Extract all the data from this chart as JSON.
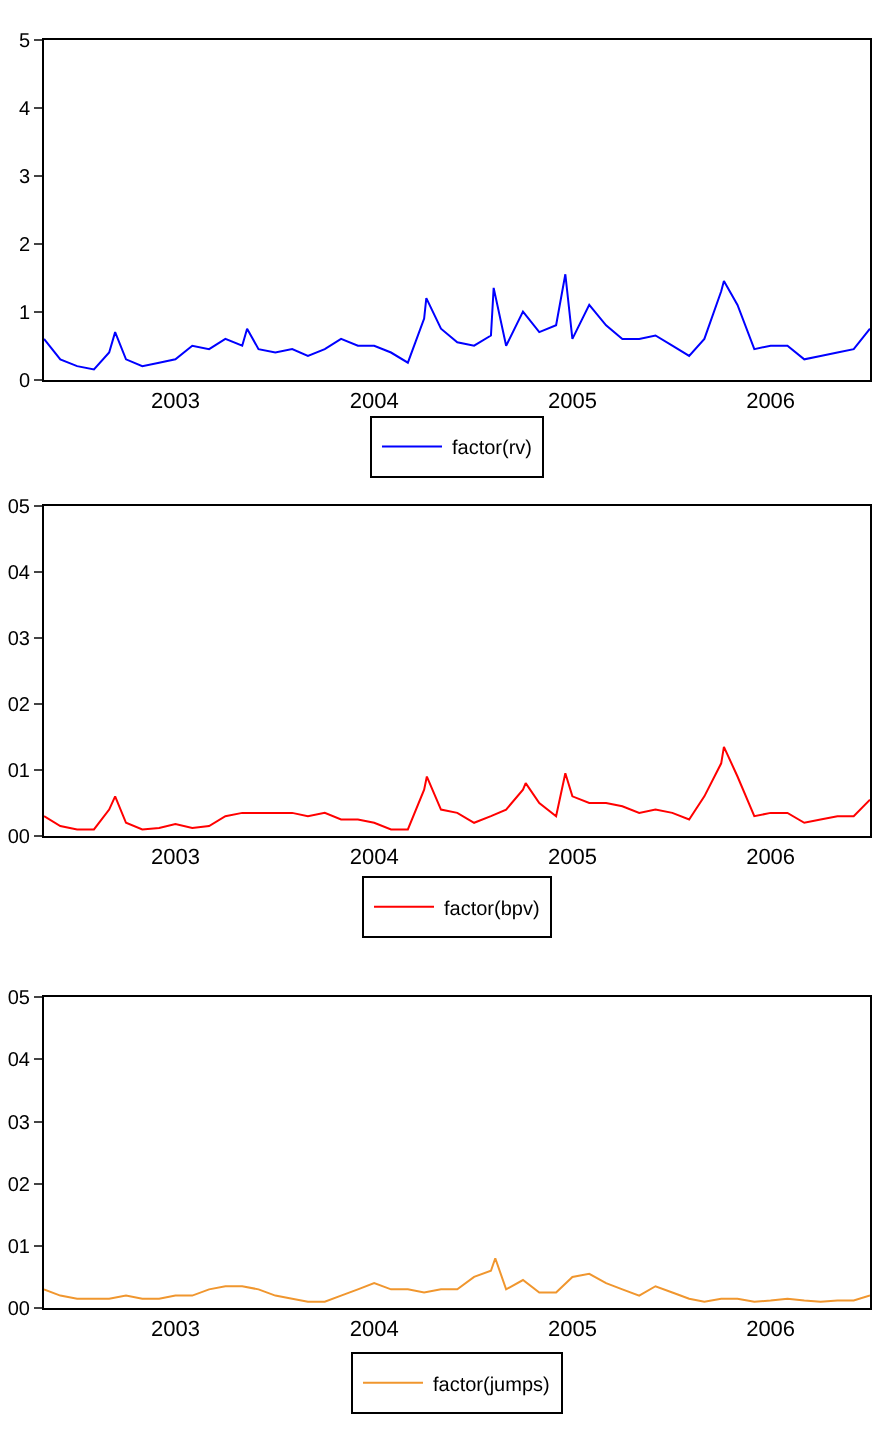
{
  "chart_data": [
    {
      "type": "line",
      "xlim": [
        "2002-11-01",
        "2006-12-31"
      ],
      "ylim": [
        0,
        5
      ],
      "yticks": [
        0,
        1,
        2,
        3,
        4,
        5
      ],
      "xticks": [
        {
          "value": "2003-07-01",
          "label": "2003"
        },
        {
          "value": "2004-07-01",
          "label": "2004"
        },
        {
          "value": "2005-07-01",
          "label": "2005"
        },
        {
          "value": "2006-07-01",
          "label": "2006"
        }
      ],
      "legend": "bottom",
      "series": [
        {
          "name": "factor(rv)",
          "color": "#0000ff",
          "x": [
            "2002-11",
            "2002-12",
            "2003-01",
            "2003-02",
            "2003-03",
            "2003-03-12",
            "2003-04",
            "2003-05",
            "2003-06",
            "2003-07",
            "2003-08",
            "2003-09",
            "2003-10",
            "2003-11",
            "2003-11-10",
            "2003-12",
            "2004-01",
            "2004-02",
            "2004-03",
            "2004-04",
            "2004-05",
            "2004-06",
            "2004-07",
            "2004-08",
            "2004-09",
            "2004-10",
            "2004-10-05",
            "2004-11",
            "2004-12",
            "2005-01",
            "2005-02",
            "2005-02-06",
            "2005-03",
            "2005-04",
            "2005-05",
            "2005-06",
            "2005-06-18",
            "2005-07",
            "2005-08",
            "2005-09",
            "2005-10",
            "2005-11",
            "2005-12",
            "2006-01",
            "2006-02",
            "2006-03",
            "2006-04",
            "2006-04-06",
            "2006-05",
            "2006-06",
            "2006-07",
            "2006-08",
            "2006-09",
            "2006-10",
            "2006-11",
            "2006-12",
            "2006-12-31"
          ],
          "values": [
            0.6,
            0.3,
            0.2,
            0.15,
            0.4,
            0.7,
            0.3,
            0.2,
            0.25,
            0.3,
            0.5,
            0.45,
            0.6,
            0.5,
            0.75,
            0.45,
            0.4,
            0.45,
            0.35,
            0.45,
            0.6,
            0.5,
            0.5,
            0.4,
            0.25,
            0.9,
            1.2,
            0.75,
            0.55,
            0.5,
            0.65,
            1.35,
            0.5,
            1.0,
            0.7,
            0.8,
            1.55,
            0.6,
            1.1,
            0.8,
            0.6,
            0.6,
            0.65,
            0.5,
            0.35,
            0.6,
            1.3,
            1.45,
            1.1,
            0.45,
            0.5,
            0.5,
            0.3,
            0.35,
            0.4,
            0.45,
            0.75
          ]
        }
      ]
    },
    {
      "type": "line",
      "xlim": [
        "2002-11-01",
        "2006-12-31"
      ],
      "ylim": [
        0,
        5
      ],
      "yticks": [
        {
          "value": 0,
          "label": "00"
        },
        {
          "value": 1,
          "label": "01"
        },
        {
          "value": 2,
          "label": "02"
        },
        {
          "value": 3,
          "label": "03"
        },
        {
          "value": 4,
          "label": "04"
        },
        {
          "value": 5,
          "label": "05"
        }
      ],
      "xticks": [
        {
          "value": "2003-07-01",
          "label": "2003"
        },
        {
          "value": "2004-07-01",
          "label": "2004"
        },
        {
          "value": "2005-07-01",
          "label": "2005"
        },
        {
          "value": "2006-07-01",
          "label": "2006"
        }
      ],
      "legend": "bottom",
      "series": [
        {
          "name": "factor(bpv)",
          "color": "#ff0000",
          "x": [
            "2002-11",
            "2002-12",
            "2003-01",
            "2003-02",
            "2003-03",
            "2003-03-12",
            "2003-04",
            "2003-05",
            "2003-06",
            "2003-07",
            "2003-08",
            "2003-09",
            "2003-10",
            "2003-11",
            "2003-12",
            "2004-01",
            "2004-02",
            "2004-03",
            "2004-04",
            "2004-05",
            "2004-06",
            "2004-07",
            "2004-08",
            "2004-09",
            "2004-10",
            "2004-10-06",
            "2004-11",
            "2004-12",
            "2005-01",
            "2005-02",
            "2005-03",
            "2005-04",
            "2005-04-06",
            "2005-05",
            "2005-06",
            "2005-06-18",
            "2005-07",
            "2005-08",
            "2005-09",
            "2005-10",
            "2005-11",
            "2005-12",
            "2006-01",
            "2006-02",
            "2006-03",
            "2006-04",
            "2006-04-06",
            "2006-05",
            "2006-06",
            "2006-07",
            "2006-08",
            "2006-09",
            "2006-10",
            "2006-11",
            "2006-12",
            "2006-12-31"
          ],
          "values": [
            0.3,
            0.15,
            0.1,
            0.1,
            0.4,
            0.6,
            0.2,
            0.1,
            0.12,
            0.18,
            0.12,
            0.15,
            0.3,
            0.35,
            0.35,
            0.35,
            0.35,
            0.3,
            0.35,
            0.25,
            0.25,
            0.2,
            0.1,
            0.1,
            0.7,
            0.9,
            0.4,
            0.35,
            0.2,
            0.3,
            0.4,
            0.7,
            0.8,
            0.5,
            0.3,
            0.95,
            0.6,
            0.5,
            0.5,
            0.45,
            0.35,
            0.4,
            0.35,
            0.25,
            0.6,
            1.1,
            1.35,
            0.9,
            0.3,
            0.35,
            0.35,
            0.2,
            0.25,
            0.3,
            0.3,
            0.55
          ]
        }
      ]
    },
    {
      "type": "line",
      "xlim": [
        "2002-11-01",
        "2006-12-31"
      ],
      "ylim": [
        0,
        5
      ],
      "yticks": [
        {
          "value": 0,
          "label": "00"
        },
        {
          "value": 1,
          "label": "01"
        },
        {
          "value": 2,
          "label": "02"
        },
        {
          "value": 3,
          "label": "03"
        },
        {
          "value": 4,
          "label": "04"
        },
        {
          "value": 5,
          "label": "05"
        }
      ],
      "xticks": [
        {
          "value": "2003-07-01",
          "label": "2003"
        },
        {
          "value": "2004-07-01",
          "label": "2004"
        },
        {
          "value": "2005-07-01",
          "label": "2005"
        },
        {
          "value": "2006-07-01",
          "label": "2006"
        }
      ],
      "legend": "bottom",
      "series": [
        {
          "name": "factor(jumps)",
          "color": "#f0962e",
          "x": [
            "2002-11",
            "2002-12",
            "2003-01",
            "2003-02",
            "2003-03",
            "2003-04",
            "2003-05",
            "2003-06",
            "2003-07",
            "2003-08",
            "2003-09",
            "2003-10",
            "2003-11",
            "2003-12",
            "2004-01",
            "2004-02",
            "2004-03",
            "2004-04",
            "2004-05",
            "2004-06",
            "2004-07",
            "2004-08",
            "2004-09",
            "2004-10",
            "2004-11",
            "2004-12",
            "2005-01",
            "2005-02",
            "2005-02-09",
            "2005-03",
            "2005-04",
            "2005-05",
            "2005-06",
            "2005-07",
            "2005-08",
            "2005-09",
            "2005-10",
            "2005-11",
            "2005-12",
            "2006-01",
            "2006-02",
            "2006-03",
            "2006-04",
            "2006-05",
            "2006-06",
            "2006-07",
            "2006-08",
            "2006-09",
            "2006-10",
            "2006-11",
            "2006-12",
            "2006-12-31"
          ],
          "values": [
            0.3,
            0.2,
            0.15,
            0.15,
            0.15,
            0.2,
            0.15,
            0.15,
            0.2,
            0.2,
            0.3,
            0.35,
            0.35,
            0.3,
            0.2,
            0.15,
            0.1,
            0.1,
            0.2,
            0.3,
            0.4,
            0.3,
            0.3,
            0.25,
            0.3,
            0.3,
            0.5,
            0.6,
            0.8,
            0.3,
            0.45,
            0.25,
            0.25,
            0.5,
            0.55,
            0.4,
            0.3,
            0.2,
            0.35,
            0.25,
            0.15,
            0.1,
            0.15,
            0.15,
            0.1,
            0.12,
            0.15,
            0.12,
            0.1,
            0.12,
            0.12,
            0.2
          ]
        }
      ]
    }
  ]
}
